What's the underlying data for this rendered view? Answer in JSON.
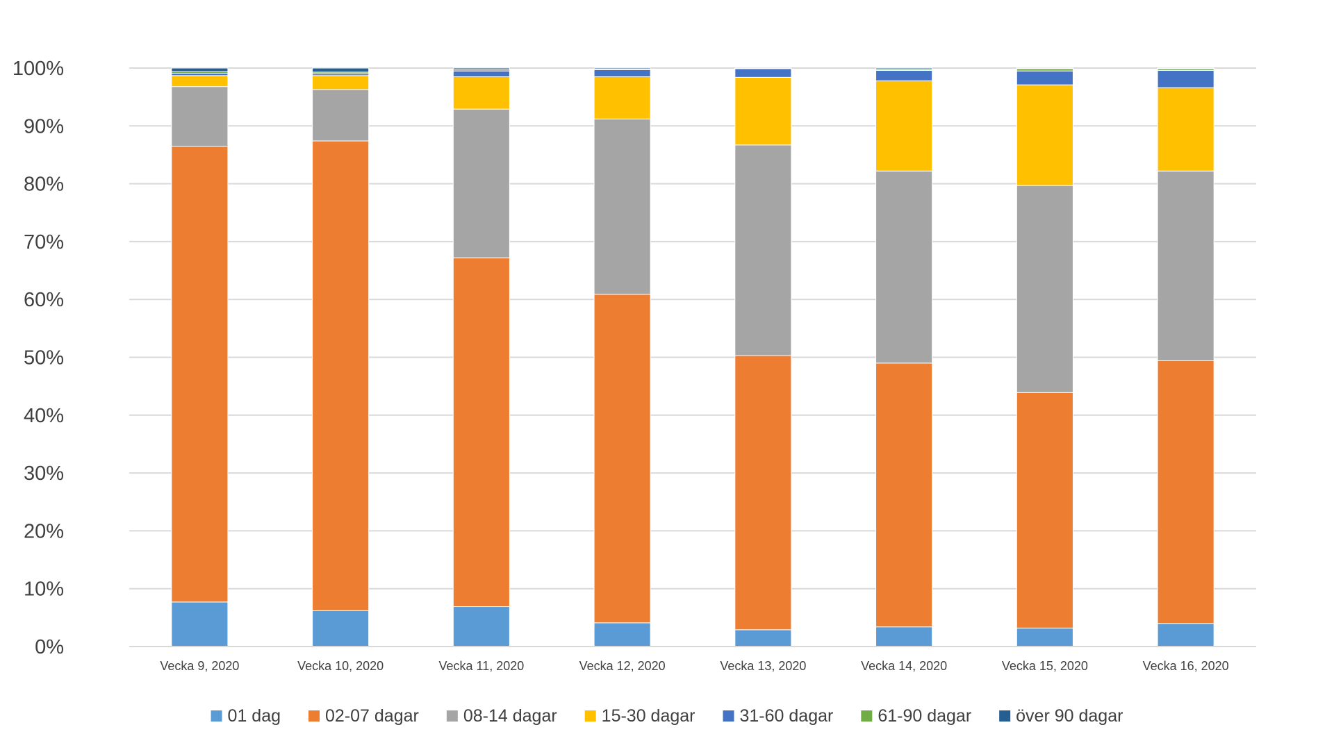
{
  "chart_data": {
    "type": "bar",
    "stacked": true,
    "percent_stacked": true,
    "categories": [
      "Vecka 9, 2020",
      "Vecka 10, 2020",
      "Vecka 11, 2020",
      "Vecka 12, 2020",
      "Vecka 13, 2020",
      "Vecka 14, 2020",
      "Vecka 15, 2020",
      "Vecka 16, 2020"
    ],
    "series": [
      {
        "name": "01 dag",
        "color": "#5b9bd5",
        "values": [
          7.7,
          6.2,
          6.9,
          4.1,
          2.9,
          3.4,
          3.2,
          4.0
        ]
      },
      {
        "name": "02-07 dagar",
        "color": "#ed7d31",
        "values": [
          78.8,
          81.2,
          60.3,
          56.8,
          47.4,
          45.6,
          40.7,
          45.4
        ]
      },
      {
        "name": "08-14 dagar",
        "color": "#a5a5a5",
        "values": [
          10.3,
          8.9,
          25.7,
          30.3,
          36.4,
          33.2,
          35.8,
          32.8
        ]
      },
      {
        "name": "15-30 dagar",
        "color": "#ffc000",
        "values": [
          1.9,
          2.4,
          5.6,
          7.3,
          11.7,
          15.6,
          17.4,
          14.4
        ]
      },
      {
        "name": "31-60 dagar",
        "color": "#4472c4",
        "values": [
          0.4,
          0.3,
          1.0,
          1.2,
          1.5,
          1.8,
          2.4,
          3.0
        ]
      },
      {
        "name": "61-90 dagar",
        "color": "#70ad47",
        "values": [
          0.3,
          0.3,
          0.2,
          0.1,
          0.0,
          0.2,
          0.4,
          0.3
        ]
      },
      {
        "name": "över 90 dagar",
        "color": "#255e91",
        "values": [
          0.6,
          0.7,
          0.3,
          0.2,
          0.1,
          0.2,
          0.1,
          0.1
        ]
      }
    ],
    "yticks": [
      "0%",
      "10%",
      "20%",
      "30%",
      "40%",
      "50%",
      "60%",
      "70%",
      "80%",
      "90%",
      "100%"
    ],
    "ylim": [
      0,
      100
    ],
    "grid": true,
    "legend_position": "bottom",
    "title": "",
    "xlabel": "",
    "ylabel": ""
  }
}
